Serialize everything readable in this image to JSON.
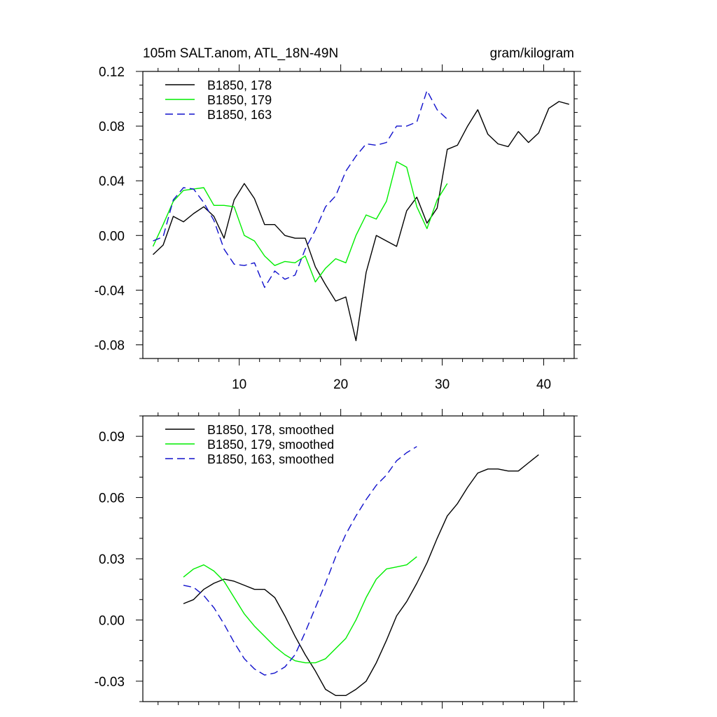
{
  "header": {
    "title": "105m SALT.anom, ATL_18N-49N",
    "units": "gram/kilogram"
  },
  "chart_data": [
    {
      "type": "line",
      "title": "105m SALT.anom, ATL_18N-49N",
      "units": "gram/kilogram",
      "xlim": [
        0.5,
        43
      ],
      "ylim": [
        -0.09,
        0.12
      ],
      "x_major_ticks": [
        10,
        20,
        30,
        40
      ],
      "x_tick_labels": [
        "10",
        "20",
        "30",
        "40"
      ],
      "x_minor_step": 2,
      "y_major_ticks": [
        0.12,
        0.08,
        0.04,
        0.0,
        -0.04,
        -0.08
      ],
      "y_tick_labels": [
        "0.12",
        "0.08",
        "0.04",
        "0.00",
        "-0.04",
        "-0.08"
      ],
      "y_minor_step": 0.01,
      "legend_position": "top-left",
      "series": [
        {
          "name": "B1850, 178",
          "color": "#000000",
          "dash": "solid",
          "x": [
            1.5,
            2.5,
            3.5,
            4.5,
            5.5,
            6.5,
            7.5,
            8.5,
            9.5,
            10.5,
            11.5,
            12.5,
            13.5,
            14.5,
            15.5,
            16.5,
            17.5,
            18.5,
            19.5,
            20.5,
            21.5,
            22.5,
            23.5,
            24.5,
            25.5,
            26.5,
            27.5,
            28.5,
            29.5,
            30.5,
            31.5,
            32.5,
            33.5,
            34.5,
            35.5,
            36.5,
            37.5,
            38.5,
            39.5,
            40.5,
            41.5,
            42.5
          ],
          "y": [
            -0.014,
            -0.007,
            0.014,
            0.01,
            0.016,
            0.021,
            0.014,
            -0.002,
            0.026,
            0.038,
            0.027,
            0.008,
            0.008,
            0.0,
            -0.002,
            -0.002,
            -0.023,
            -0.036,
            -0.048,
            -0.045,
            -0.077,
            -0.027,
            0.0,
            -0.004,
            -0.008,
            0.018,
            0.028,
            0.009,
            0.02,
            0.063,
            0.066,
            0.08,
            0.092,
            0.074,
            0.067,
            0.065,
            0.076,
            0.068,
            0.075,
            0.093,
            0.098,
            0.096
          ]
        },
        {
          "name": "B1850, 179",
          "color": "#00ee00",
          "dash": "solid",
          "x": [
            1.5,
            2.5,
            3.5,
            4.5,
            5.5,
            6.5,
            7.5,
            8.5,
            9.5,
            10.5,
            11.5,
            12.5,
            13.5,
            14.5,
            15.5,
            16.5,
            17.5,
            18.5,
            19.5,
            20.5,
            21.5,
            22.5,
            23.5,
            24.5,
            25.5,
            26.5,
            27.5,
            28.5,
            29.5,
            30.5
          ],
          "y": [
            -0.008,
            0.008,
            0.025,
            0.033,
            0.034,
            0.035,
            0.022,
            0.022,
            0.021,
            0.0,
            -0.004,
            -0.015,
            -0.022,
            -0.019,
            -0.02,
            -0.015,
            -0.034,
            -0.024,
            -0.017,
            -0.02,
            0.0,
            0.015,
            0.012,
            0.025,
            0.054,
            0.05,
            0.021,
            0.005,
            0.026,
            0.038
          ]
        },
        {
          "name": "B1850, 163",
          "color": "#1010cc",
          "dash": "dashed",
          "x": [
            1.5,
            2.5,
            3.5,
            4.5,
            5.5,
            6.5,
            7.5,
            8.5,
            9.5,
            10.5,
            11.5,
            12.5,
            13.5,
            14.5,
            15.5,
            16.5,
            17.5,
            18.5,
            19.5,
            20.5,
            21.5,
            22.5,
            23.5,
            24.5,
            25.5,
            26.5,
            27.5,
            28.5,
            29.5,
            30.5
          ],
          "y": [
            -0.004,
            -0.001,
            0.026,
            0.035,
            0.034,
            0.024,
            0.011,
            -0.01,
            -0.021,
            -0.022,
            -0.02,
            -0.038,
            -0.026,
            -0.032,
            -0.029,
            -0.01,
            0.004,
            0.021,
            0.029,
            0.047,
            0.058,
            0.067,
            0.066,
            0.068,
            0.08,
            0.08,
            0.083,
            0.106,
            0.092,
            0.085
          ]
        }
      ]
    },
    {
      "type": "line",
      "title": "",
      "xlim": [
        0.5,
        43
      ],
      "ylim": [
        -0.04,
        0.1
      ],
      "x_major_ticks": [
        10,
        20,
        30,
        40
      ],
      "x_minor_step": 2,
      "y_major_ticks": [
        0.09,
        0.06,
        0.03,
        0.0,
        -0.03
      ],
      "y_tick_labels": [
        "0.09",
        "0.06",
        "0.03",
        "0.00",
        "-0.03"
      ],
      "y_minor_step": 0.01,
      "legend_position": "top-left",
      "series": [
        {
          "name": "B1850, 178, smoothed",
          "color": "#000000",
          "dash": "solid",
          "x": [
            4.5,
            5.5,
            6.5,
            7.5,
            8.5,
            9.5,
            10.5,
            11.5,
            12.5,
            13.5,
            14.5,
            15.5,
            16.5,
            17.5,
            18.5,
            19.5,
            20.5,
            21.5,
            22.5,
            23.5,
            24.5,
            25.5,
            26.5,
            27.5,
            28.5,
            29.5,
            30.5,
            31.5,
            32.5,
            33.5,
            34.5,
            35.5,
            36.5,
            37.5,
            38.5,
            39.5
          ],
          "y": [
            0.008,
            0.01,
            0.015,
            0.018,
            0.02,
            0.019,
            0.017,
            0.015,
            0.015,
            0.011,
            0.002,
            -0.008,
            -0.017,
            -0.025,
            -0.034,
            -0.037,
            -0.037,
            -0.034,
            -0.03,
            -0.021,
            -0.01,
            0.002,
            0.009,
            0.018,
            0.028,
            0.04,
            0.051,
            0.057,
            0.065,
            0.072,
            0.074,
            0.074,
            0.073,
            0.073,
            0.077,
            0.081
          ]
        },
        {
          "name": "B1850, 179, smoothed",
          "color": "#00ee00",
          "dash": "solid",
          "x": [
            4.5,
            5.5,
            6.5,
            7.5,
            8.5,
            9.5,
            10.5,
            11.5,
            12.5,
            13.5,
            14.5,
            15.5,
            16.5,
            17.5,
            18.5,
            19.5,
            20.5,
            21.5,
            22.5,
            23.5,
            24.5,
            25.5,
            26.5,
            27.5
          ],
          "y": [
            0.021,
            0.025,
            0.027,
            0.024,
            0.019,
            0.011,
            0.003,
            -0.003,
            -0.008,
            -0.013,
            -0.017,
            -0.02,
            -0.021,
            -0.021,
            -0.019,
            -0.014,
            -0.009,
            0.0,
            0.011,
            0.02,
            0.025,
            0.026,
            0.027,
            0.031
          ]
        },
        {
          "name": "B1850, 163, smoothed",
          "color": "#1010cc",
          "dash": "dashed",
          "x": [
            4.5,
            5.5,
            6.5,
            7.5,
            8.5,
            9.5,
            10.5,
            11.5,
            12.5,
            13.5,
            14.5,
            15.5,
            16.5,
            17.5,
            18.5,
            19.5,
            20.5,
            21.5,
            22.5,
            23.5,
            24.5,
            25.5,
            26.5,
            27.5
          ],
          "y": [
            0.017,
            0.016,
            0.012,
            0.006,
            -0.002,
            -0.011,
            -0.019,
            -0.024,
            -0.027,
            -0.026,
            -0.023,
            -0.017,
            -0.006,
            0.006,
            0.018,
            0.031,
            0.042,
            0.051,
            0.059,
            0.066,
            0.071,
            0.078,
            0.082,
            0.085
          ]
        }
      ]
    }
  ]
}
